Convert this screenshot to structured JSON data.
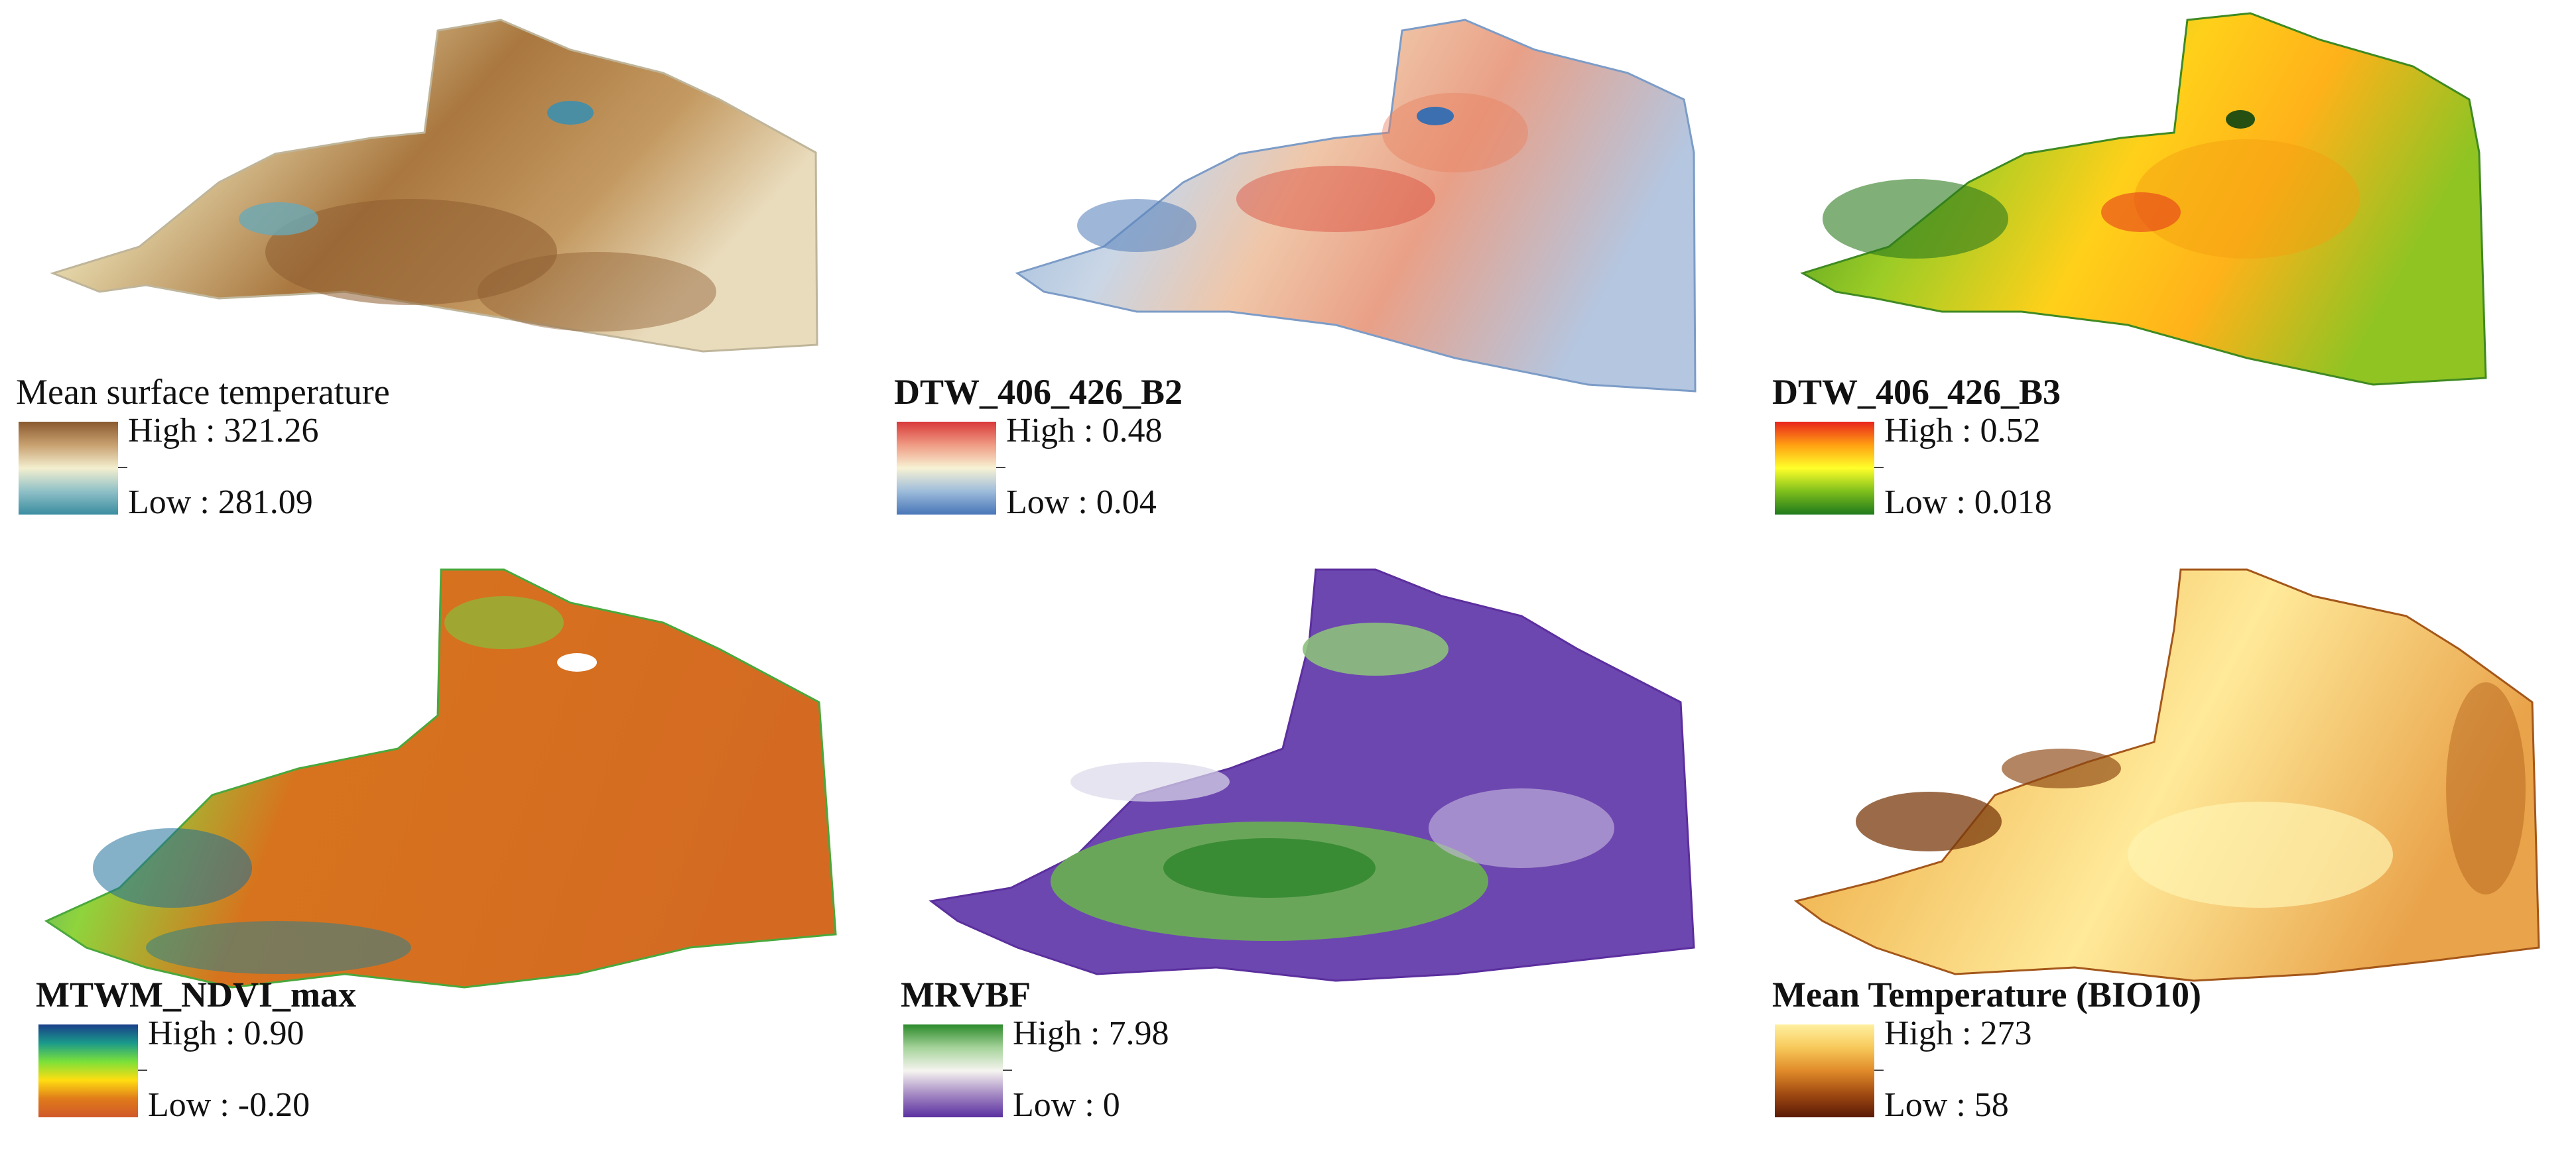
{
  "panels": [
    {
      "id": "p1",
      "title": "Mean surface temperature",
      "title_bold": false,
      "high": "High : 321.26",
      "low": "Low : 281.09",
      "ramp_colors": [
        "#8a5a2e",
        "#c8a070",
        "#f3efcf",
        "#8fc0c7",
        "#3b8da0"
      ]
    },
    {
      "id": "p2",
      "title": "DTW_406_426_B2",
      "title_bold": true,
      "high": "High : 0.48",
      "low": "Low : 0.04",
      "ramp_colors": [
        "#d8393a",
        "#ef9b83",
        "#f7f2d4",
        "#9dbcdb",
        "#4876b8"
      ]
    },
    {
      "id": "p3",
      "title": "DTW_406_426_B3",
      "title_bold": true,
      "high": "High : 0.52",
      "low": "Low : 0.018",
      "ramp_colors": [
        "#e8231d",
        "#ffa012",
        "#ffff2a",
        "#7fbf1c",
        "#1f7a1c"
      ]
    },
    {
      "id": "p4",
      "title": "MTWM_NDVI_max",
      "title_bold": true,
      "high": "High : 0.90",
      "low": "Low : -0.20",
      "ramp_colors": [
        "#1a3f8a",
        "#1a9a8a",
        "#7be03a",
        "#ffdd10",
        "#e07b1a",
        "#d0582a"
      ]
    },
    {
      "id": "p5",
      "title": "MRVBF",
      "title_bold": true,
      "high": "High : 7.98",
      "low": "Low : 0",
      "ramp_colors": [
        "#2b8a2a",
        "#a5d39a",
        "#f6f4f0",
        "#a58ac4",
        "#5a2fa0"
      ]
    },
    {
      "id": "p6",
      "title": "Mean Temperature (BIO10)",
      "title_bold": true,
      "high": "High : 273",
      "low": "Low : 58",
      "ramp_colors": [
        "#fff0a0",
        "#f7c95a",
        "#e08a2a",
        "#a04a12",
        "#5a1a05"
      ]
    }
  ]
}
